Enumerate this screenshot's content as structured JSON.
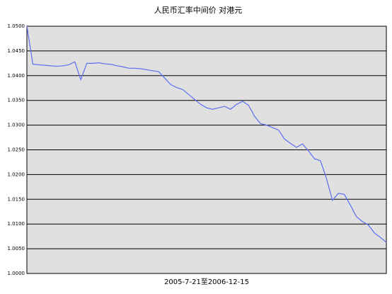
{
  "chart_data": {
    "type": "line",
    "title": "人民币汇率中间价 对港元",
    "x_label": "2005-7-21至2006-12-15",
    "series": [
      {
        "name": null,
        "color": "#5b6ff0",
        "values": [
          1.05,
          1.0423,
          1.0422,
          1.0421,
          1.042,
          1.0419,
          1.042,
          1.0422,
          1.0428,
          1.0392,
          1.0425,
          1.0425,
          1.0426,
          1.0424,
          1.0423,
          1.042,
          1.0418,
          1.0415,
          1.0415,
          1.0414,
          1.0412,
          1.041,
          1.0408,
          1.0395,
          1.0382,
          1.0376,
          1.0372,
          1.0362,
          1.0352,
          1.0342,
          1.0335,
          1.0332,
          1.0335,
          1.0338,
          1.0332,
          1.0342,
          1.0348,
          1.034,
          1.0318,
          1.0303,
          1.03,
          1.0295,
          1.029,
          1.0272,
          1.0263,
          1.0255,
          1.0262,
          1.0248,
          1.0232,
          1.0228,
          1.0192,
          1.0148,
          1.0162,
          1.016,
          1.0138,
          1.0115,
          1.0105,
          1.0098,
          1.0082,
          1.0073,
          1.0063
        ]
      }
    ],
    "ylim": [
      1.0,
      1.05
    ],
    "yticks": [
      {
        "value": 1.0,
        "label": "1.0000"
      },
      {
        "value": 1.005,
        "label": "1.0050"
      },
      {
        "value": 1.01,
        "label": "1.0100"
      },
      {
        "value": 1.015,
        "label": "1.0150"
      },
      {
        "value": 1.02,
        "label": "1.0200"
      },
      {
        "value": 1.025,
        "label": "1.0250"
      },
      {
        "value": 1.03,
        "label": "1.0300"
      },
      {
        "value": 1.035,
        "label": "1.0350"
      },
      {
        "value": 1.04,
        "label": "1.0400"
      },
      {
        "value": 1.045,
        "label": "1.0450"
      },
      {
        "value": 1.05,
        "label": "1.0500"
      }
    ],
    "grid": true
  }
}
